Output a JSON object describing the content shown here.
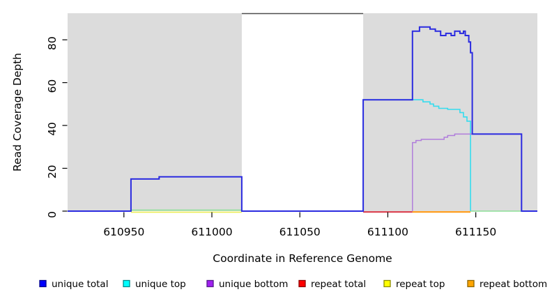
{
  "chart_data": {
    "type": "line",
    "title": "",
    "xlabel": "Coordinate in Reference Genome",
    "ylabel": "Read Coverage Depth",
    "xlim": [
      610918,
      611185
    ],
    "ylim": [
      0,
      92.4
    ],
    "x_ticks": [
      "610950",
      "611000",
      "611050",
      "611100",
      "611150"
    ],
    "x_tick_values": [
      610950,
      611000,
      611050,
      611100,
      611150
    ],
    "y_ticks": [
      "0",
      "20",
      "40",
      "60",
      "80"
    ],
    "y_tick_values": [
      0,
      20,
      40,
      60,
      80
    ],
    "grid": "off",
    "legend_position": "bottom",
    "panel_highlight_color": "#dcdcdc",
    "panel_gap_border_color": "#4d4d4d",
    "highlight_regions": [
      [
        610918,
        611017
      ],
      [
        611086,
        611185
      ]
    ],
    "series": [
      {
        "name": "unique total",
        "color": "#2b2be0",
        "width": 2,
        "points": [
          [
            610918,
            0
          ],
          [
            610954,
            0
          ],
          [
            610954,
            15
          ],
          [
            610970,
            15
          ],
          [
            610970,
            16
          ],
          [
            611017,
            16
          ],
          [
            611017,
            0
          ],
          [
            611086,
            0
          ],
          [
            611086,
            52
          ],
          [
            611114,
            52
          ],
          [
            611114,
            84
          ],
          [
            611118,
            84
          ],
          [
            611118,
            86
          ],
          [
            611124,
            86
          ],
          [
            611124,
            85
          ],
          [
            611127,
            85
          ],
          [
            611127,
            84
          ],
          [
            611130,
            84
          ],
          [
            611130,
            82
          ],
          [
            611133,
            82
          ],
          [
            611133,
            83
          ],
          [
            611136,
            83
          ],
          [
            611136,
            82
          ],
          [
            611138,
            82
          ],
          [
            611138,
            84
          ],
          [
            611141,
            84
          ],
          [
            611141,
            83
          ],
          [
            611143,
            83
          ],
          [
            611143,
            84
          ],
          [
            611144,
            84
          ],
          [
            611144,
            82
          ],
          [
            611146,
            82
          ],
          [
            611146,
            79
          ],
          [
            611147,
            79
          ],
          [
            611147,
            74
          ],
          [
            611148,
            74
          ],
          [
            611148,
            36
          ],
          [
            611176,
            36
          ],
          [
            611176,
            0
          ],
          [
            611185,
            0
          ]
        ]
      },
      {
        "name": "unique top",
        "color": "#35dcee",
        "width": 1.6,
        "points": [
          [
            611086,
            0
          ],
          [
            611086,
            52
          ],
          [
            611120,
            52
          ],
          [
            611120,
            51
          ],
          [
            611124,
            51
          ],
          [
            611124,
            50
          ],
          [
            611126,
            50
          ],
          [
            611126,
            49
          ],
          [
            611129,
            49
          ],
          [
            611129,
            48
          ],
          [
            611134,
            48
          ],
          [
            611134,
            47.5
          ],
          [
            611141,
            47.5
          ],
          [
            611141,
            46
          ],
          [
            611143,
            46
          ],
          [
            611143,
            44
          ],
          [
            611145,
            44
          ],
          [
            611145,
            42
          ],
          [
            611147,
            42
          ],
          [
            611147,
            0
          ]
        ]
      },
      {
        "name": "unique bottom",
        "color": "#b07ddb",
        "width": 1.5,
        "points": [
          [
            611114,
            0
          ],
          [
            611114,
            32
          ],
          [
            611116,
            32
          ],
          [
            611116,
            33
          ],
          [
            611119,
            33
          ],
          [
            611119,
            33.5
          ],
          [
            611132,
            33.5
          ],
          [
            611132,
            34.5
          ],
          [
            611134,
            34.5
          ],
          [
            611134,
            35.3
          ],
          [
            611138,
            35.3
          ],
          [
            611138,
            36
          ],
          [
            611176,
            36
          ],
          [
            611176,
            0
          ]
        ]
      },
      {
        "name": "repeat total",
        "color": "#d93b4b",
        "width": 2.2,
        "points": [
          [
            611086,
            0
          ],
          [
            611114,
            0
          ]
        ]
      },
      {
        "name": "repeat top",
        "color": "#ecec55",
        "width": 1.6,
        "points": [
          [
            610954,
            0
          ],
          [
            611017,
            0
          ]
        ]
      },
      {
        "name": "repeat bottom",
        "color": "#ff9912",
        "width": 2.2,
        "points": [
          [
            611114,
            0
          ],
          [
            611147,
            0
          ]
        ]
      }
    ],
    "zero_overlap_segments": [
      {
        "name": "overlap-blend-left",
        "color": "#8cdf96",
        "width": 1.6,
        "from": 610954,
        "to": 611017,
        "dy": -1.4
      },
      {
        "name": "overlap-blend-right",
        "color": "#8cdf96",
        "width": 1.6,
        "from": 611147,
        "to": 611176,
        "dy": 0
      }
    ]
  },
  "legend": {
    "items": [
      {
        "label": "unique total",
        "fill": "#0000ff",
        "border": "#00008b"
      },
      {
        "label": "unique top",
        "fill": "#00ffff",
        "border": "#008b8b"
      },
      {
        "label": "unique bottom",
        "fill": "#a020f0",
        "border": "#551a8b"
      },
      {
        "label": "repeat total",
        "fill": "#ff0000",
        "border": "#8b0000"
      },
      {
        "label": "repeat top",
        "fill": "#ffff00",
        "border": "#8b8b00"
      },
      {
        "label": "repeat bottom",
        "fill": "#ffa500",
        "border": "#8b6500"
      }
    ]
  }
}
